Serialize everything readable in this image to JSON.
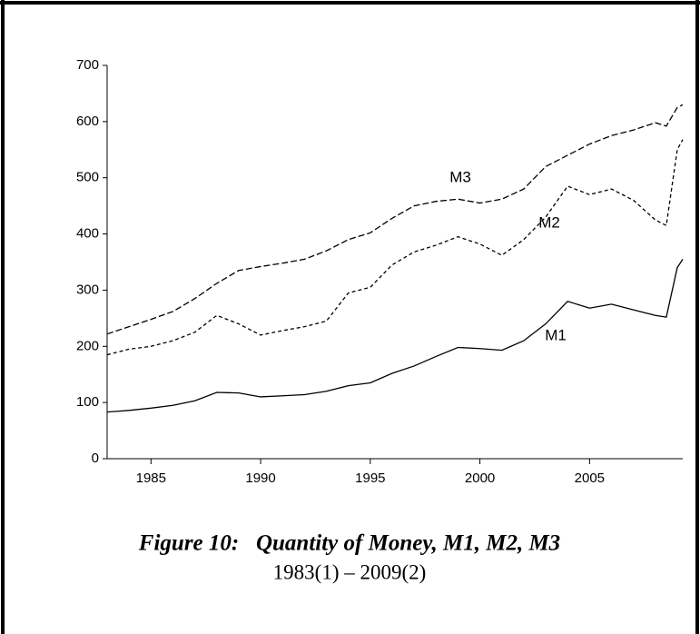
{
  "chart_data": {
    "type": "line",
    "title": "Figure 10:   Quantity of Money, M1, M2, M3",
    "subtitle": "1983(1) – 2009(2)",
    "x": [
      1983,
      1984,
      1985,
      1986,
      1987,
      1988,
      1989,
      1990,
      1991,
      1992,
      1993,
      1994,
      1995,
      1996,
      1997,
      1998,
      1999,
      2000,
      2001,
      2002,
      2003,
      2004,
      2005,
      2006,
      2007,
      2008,
      2008.5,
      2009,
      2009.25
    ],
    "series": [
      {
        "name": "M1",
        "color": "#000000",
        "style": "solid",
        "values": [
          83,
          86,
          90,
          95,
          103,
          118,
          117,
          110,
          112,
          114,
          120,
          130,
          135,
          152,
          165,
          182,
          198,
          196,
          193,
          210,
          240,
          280,
          268,
          275,
          265,
          255,
          252,
          340,
          355
        ]
      },
      {
        "name": "M2",
        "color": "#000000",
        "style": "dashed",
        "values": [
          185,
          195,
          200,
          210,
          225,
          255,
          240,
          220,
          228,
          235,
          245,
          295,
          305,
          345,
          368,
          380,
          395,
          382,
          362,
          390,
          430,
          485,
          470,
          480,
          460,
          425,
          415,
          550,
          568
        ]
      },
      {
        "name": "M3",
        "color": "#000000",
        "style": "longdash",
        "values": [
          222,
          235,
          248,
          262,
          285,
          312,
          335,
          342,
          348,
          355,
          370,
          390,
          402,
          428,
          450,
          458,
          462,
          455,
          462,
          480,
          520,
          540,
          560,
          575,
          585,
          598,
          592,
          625,
          630
        ]
      }
    ],
    "xlim": [
      1983,
      2009.25
    ],
    "xticks": [
      1985,
      1990,
      1995,
      2000,
      2005
    ],
    "ylim": [
      0,
      700
    ],
    "yticks": [
      0,
      100,
      200,
      300,
      400,
      500,
      600,
      700
    ]
  }
}
